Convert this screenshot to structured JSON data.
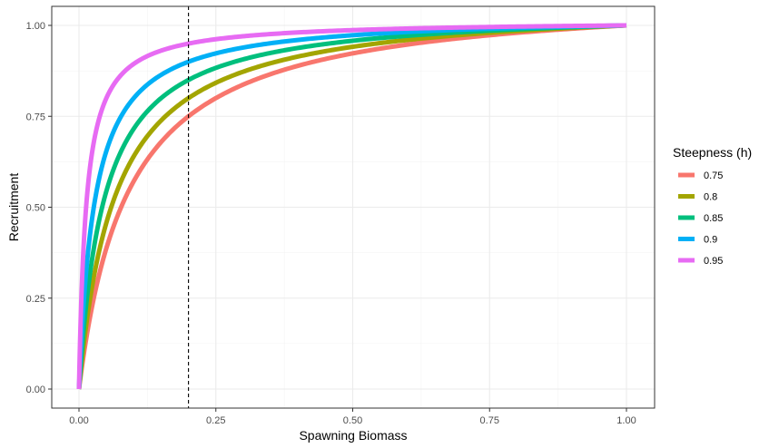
{
  "chart_data": {
    "type": "line",
    "xlabel": "Spawning Biomass",
    "ylabel": "Recruitment",
    "xlim": [
      0,
      1
    ],
    "ylim": [
      0,
      1
    ],
    "x_ticks": [
      0,
      0.25,
      0.5,
      0.75,
      1
    ],
    "y_ticks": [
      0,
      0.25,
      0.5,
      0.75,
      1
    ],
    "x_tick_labels": [
      "0.00",
      "0.25",
      "0.50",
      "0.75",
      "1.00"
    ],
    "y_tick_labels": [
      "0.00",
      "0.25",
      "0.50",
      "0.75",
      "1.00"
    ],
    "grid": true,
    "vline": {
      "x": 0.2,
      "style": "dashed",
      "color": "#000000"
    },
    "legend": {
      "title": "Steepness (h)",
      "placement": "right"
    },
    "series": [
      {
        "name": "0.75",
        "h": 0.75,
        "color": "#F8766D",
        "x": [
          0,
          0.05,
          0.1,
          0.2,
          0.3,
          0.4,
          0.5,
          0.6,
          0.7,
          0.8,
          0.9,
          1.0
        ],
        "values": [
          0,
          0.43,
          0.6,
          0.75,
          0.82,
          0.86,
          0.9,
          0.92,
          0.94,
          0.96,
          0.98,
          1.0
        ]
      },
      {
        "name": "0.8",
        "h": 0.8,
        "color": "#A3A500",
        "x": [
          0,
          0.05,
          0.1,
          0.2,
          0.3,
          0.4,
          0.5,
          0.6,
          0.7,
          0.8,
          0.9,
          1.0
        ],
        "values": [
          0,
          0.5,
          0.67,
          0.8,
          0.86,
          0.89,
          0.92,
          0.94,
          0.95,
          0.97,
          0.98,
          1.0
        ]
      },
      {
        "name": "0.85",
        "h": 0.85,
        "color": "#00BF7D",
        "x": [
          0,
          0.05,
          0.1,
          0.2,
          0.3,
          0.4,
          0.5,
          0.6,
          0.7,
          0.8,
          0.9,
          1.0
        ],
        "values": [
          0,
          0.59,
          0.74,
          0.85,
          0.89,
          0.92,
          0.94,
          0.95,
          0.96,
          0.98,
          0.99,
          1.0
        ]
      },
      {
        "name": "0.9",
        "h": 0.9,
        "color": "#00B0F6",
        "x": [
          0,
          0.05,
          0.1,
          0.2,
          0.3,
          0.4,
          0.5,
          0.6,
          0.7,
          0.8,
          0.9,
          1.0
        ],
        "values": [
          0,
          0.7,
          0.82,
          0.9,
          0.93,
          0.95,
          0.96,
          0.97,
          0.98,
          0.98,
          0.99,
          1.0
        ]
      },
      {
        "name": "0.95",
        "h": 0.95,
        "color": "#E76BF3",
        "x": [
          0,
          0.05,
          0.1,
          0.2,
          0.3,
          0.4,
          0.5,
          0.6,
          0.7,
          0.8,
          0.9,
          1.0
        ],
        "values": [
          0,
          0.83,
          0.91,
          0.95,
          0.97,
          0.98,
          0.98,
          0.99,
          0.99,
          0.99,
          1.0,
          1.0
        ]
      }
    ]
  }
}
